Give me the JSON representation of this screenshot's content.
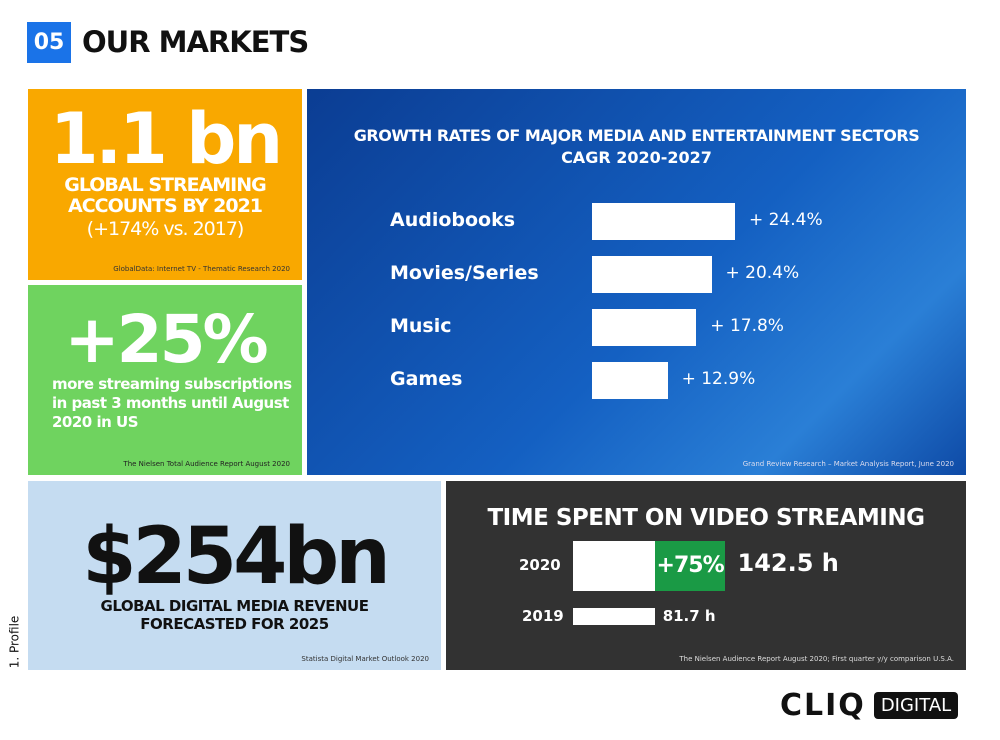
{
  "header": {
    "number": "05",
    "title": "OUR MARKETS"
  },
  "side_label": "1. Profile",
  "orange": {
    "big": "1.1 bn",
    "line1": "GLOBAL STREAMING",
    "line2": "ACCOUNTS BY 2021",
    "line3": "(+174% vs. 2017)",
    "source": "GlobalData: Internet TV - Thematic Research 2020"
  },
  "green": {
    "big": "+25%",
    "line1": "more streaming subscriptions",
    "line2": "in past 3 months until August",
    "line3": "2020 in US",
    "source": "The Nielsen Total Audience Report August 2020"
  },
  "lightblue": {
    "big": "$254bn",
    "line1": "GLOBAL DIGITAL MEDIA REVENUE",
    "line2": "FORECASTED FOR 2025",
    "source": "Statista Digital Market Outlook 2020"
  },
  "logo": {
    "text1": "CLIQ",
    "text2": "DIGITAL"
  },
  "colors": {
    "accent_blue": "#1a73e8",
    "orange": "#f9a800",
    "green": "#6fd35f",
    "dark": "#323232",
    "growth_green": "#1a9a45"
  },
  "chart_data": [
    {
      "type": "bar",
      "orientation": "horizontal",
      "title": "GROWTH RATES OF MAJOR MEDIA AND ENTERTAINMENT SECTORS",
      "subtitle": "CAGR 2020-2027",
      "categories": [
        "Audiobooks",
        "Movies/Series",
        "Music",
        "Games"
      ],
      "values": [
        24.4,
        20.4,
        17.8,
        12.9
      ],
      "data_labels": [
        "+ 24.4%",
        "+ 20.4%",
        "+ 17.8%",
        "+ 12.9%"
      ],
      "source": "Grand Review Research – Market Analysis Report, June 2020"
    },
    {
      "type": "bar",
      "orientation": "horizontal",
      "title": "TIME SPENT ON VIDEO STREAMING",
      "categories": [
        "2020",
        "2019"
      ],
      "values": [
        142.5,
        81.7
      ],
      "data_labels": [
        "142.5 h",
        "81.7 h"
      ],
      "growth_label": "+75%",
      "source": "The Nielsen Audience Report August 2020; First quarter y/y comparison U.S.A."
    }
  ]
}
